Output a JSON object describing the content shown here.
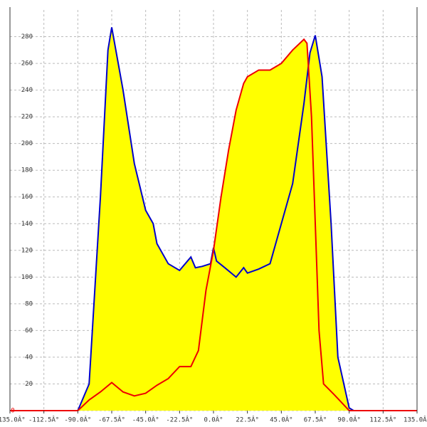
{
  "chart_data": {
    "type": "area",
    "xlim": [
      -135,
      135
    ],
    "ylim": [
      0,
      300
    ],
    "xticks": [
      {
        "value": -135,
        "label": "-135.0Â°"
      },
      {
        "value": -112.5,
        "label": "-112.5Â°"
      },
      {
        "value": -90,
        "label": "-90.0Â°"
      },
      {
        "value": -67.5,
        "label": "-67.5Â°"
      },
      {
        "value": -45,
        "label": "-45.0Â°"
      },
      {
        "value": -22.5,
        "label": "-22.5Â°"
      },
      {
        "value": 0,
        "label": "0.0Â°"
      },
      {
        "value": 22.5,
        "label": "22.5Â°"
      },
      {
        "value": 45,
        "label": "45.0Â°"
      },
      {
        "value": 67.5,
        "label": "67.5Â°"
      },
      {
        "value": 90,
        "label": "90.0Â°"
      },
      {
        "value": 112.5,
        "label": "112.5Â°"
      },
      {
        "value": 135,
        "label": "135.0Â°"
      }
    ],
    "yticks": [
      0,
      20,
      40,
      60,
      80,
      100,
      120,
      140,
      160,
      180,
      200,
      220,
      240,
      260,
      280
    ],
    "grid": true,
    "fill": "#ffff00",
    "series": [
      {
        "color": "#0000cc",
        "x": [
          -90,
          -82.5,
          -75,
          -70,
          -67.5,
          -60,
          -52.5,
          -45,
          -40,
          -37.5,
          -30,
          -22.5,
          -15,
          -12,
          -7.5,
          -2,
          0,
          2,
          7.5,
          15,
          20,
          22.5,
          30,
          37.5,
          45,
          52.5,
          60,
          64,
          67.5,
          72,
          78,
          82.5,
          90,
          93
        ],
        "values": [
          0,
          20,
          160,
          270,
          287,
          240,
          185,
          150,
          140,
          125,
          110,
          105,
          115,
          107,
          108,
          110,
          122,
          112,
          107,
          100,
          107,
          103,
          106,
          110,
          140,
          170,
          230,
          268,
          281,
          250,
          140,
          40,
          2,
          0
        ]
      },
      {
        "color": "#ee0000",
        "x": [
          -135,
          -90,
          -82.5,
          -75,
          -67.5,
          -60,
          -52.5,
          -45,
          -37.5,
          -30,
          -22.5,
          -15,
          -10,
          -5,
          0,
          5,
          10,
          15,
          20,
          22.5,
          30,
          37.5,
          45,
          52.5,
          60,
          62,
          65,
          70,
          73,
          80,
          85,
          90,
          135
        ],
        "values": [
          0,
          0,
          8,
          14,
          21,
          14,
          11,
          13,
          19,
          24,
          33,
          33,
          45,
          90,
          120,
          160,
          195,
          225,
          245,
          250,
          255,
          255,
          260,
          270,
          278,
          275,
          220,
          60,
          20,
          12,
          6,
          0,
          0
        ]
      }
    ]
  }
}
